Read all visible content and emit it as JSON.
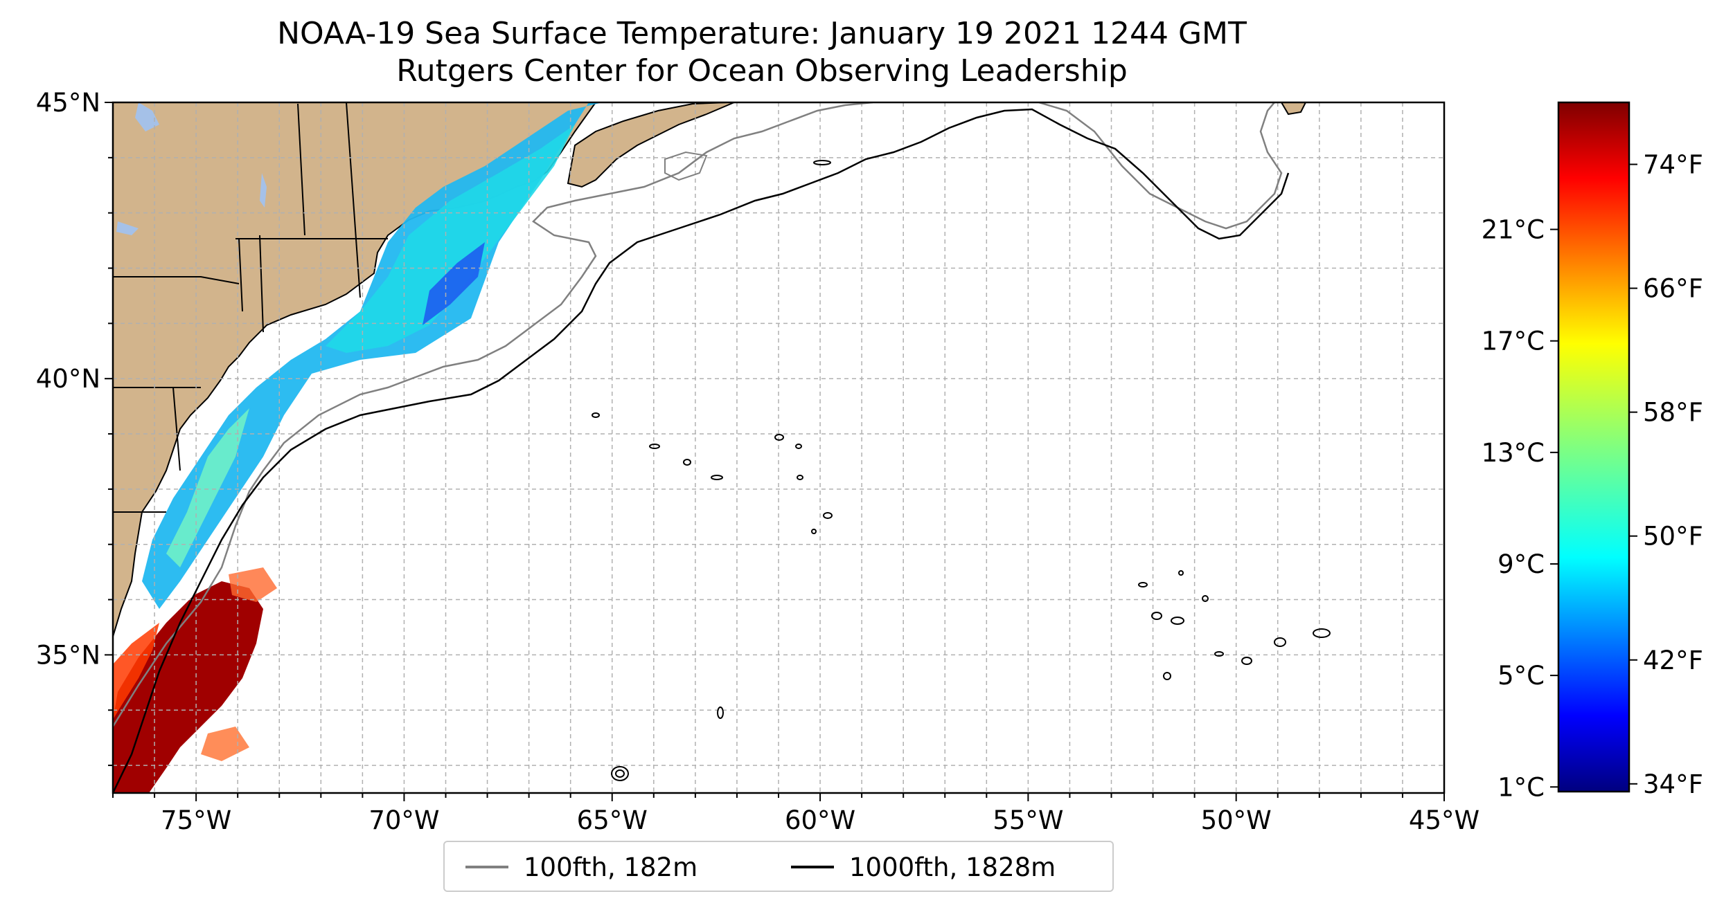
{
  "title": "NOAA-19 Sea Surface Temperature: January 19 2021 1244 GMT",
  "subtitle": "Rutgers Center for Ocean Observing Leadership",
  "map": {
    "lon_range": [
      -77,
      -45
    ],
    "lat_range": [
      32.5,
      45
    ],
    "lon_ticks": [
      "75°W",
      "70°W",
      "65°W",
      "60°W",
      "55°W",
      "50°W",
      "45°W"
    ],
    "lon_tick_values": [
      -75,
      -70,
      -65,
      -60,
      -55,
      -50,
      -45
    ],
    "lat_ticks": [
      "35°N",
      "40°N",
      "45°N"
    ],
    "lat_tick_values": [
      35,
      40,
      45
    ],
    "grid": true,
    "land_color": "#d2b48c",
    "lake_color": "#a5c1e8"
  },
  "legend": {
    "placement": "bottom-center",
    "items": [
      {
        "label": "100fth, 182m",
        "color": "#808080"
      },
      {
        "label": "1000fth, 1828m",
        "color": "#000000"
      }
    ]
  },
  "colorbar": {
    "colormap": "jet",
    "celsius_ticks": [
      "1°C",
      "5°C",
      "9°C",
      "13°C",
      "17°C",
      "21°C"
    ],
    "celsius_values": [
      1,
      5,
      9,
      13,
      17,
      21
    ],
    "fahrenheit_ticks": [
      "34°F",
      "42°F",
      "50°F",
      "58°F",
      "66°F",
      "74°F"
    ],
    "fahrenheit_values": [
      34,
      42,
      50,
      58,
      66,
      74
    ],
    "range_f": [
      33.5,
      78
    ]
  }
}
